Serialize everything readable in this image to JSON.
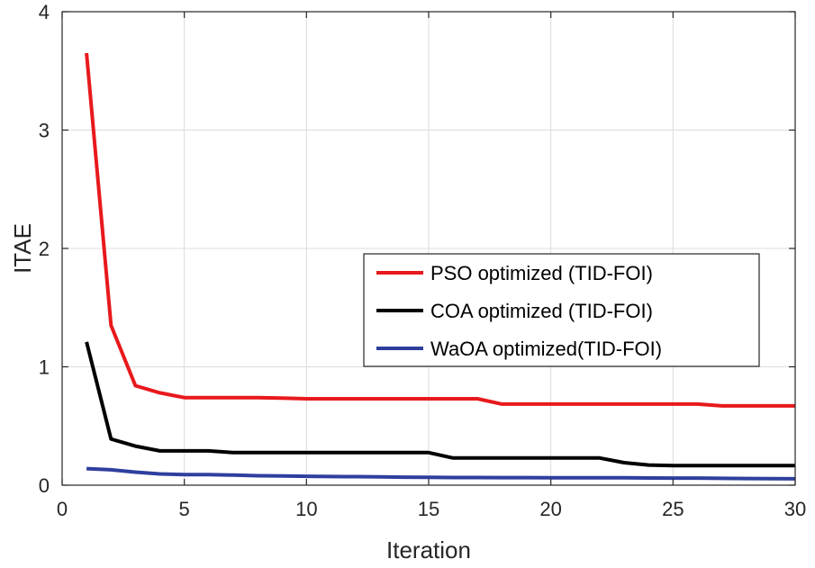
{
  "chart_data": {
    "type": "line",
    "title": "",
    "xlabel": "Iteration",
    "ylabel": "ITAE",
    "xlim": [
      0,
      30
    ],
    "ylim": [
      0,
      4
    ],
    "xticks": [
      0,
      5,
      10,
      15,
      20,
      25,
      30
    ],
    "yticks": [
      0,
      1,
      2,
      3,
      4
    ],
    "xtick_labels": [
      "0",
      "5",
      "10",
      "15",
      "20",
      "25",
      "30"
    ],
    "ytick_labels": [
      "0",
      "1",
      "2",
      "3",
      "4"
    ],
    "grid": true,
    "legend_position": "center-right",
    "series": [
      {
        "name": "PSO optimized (TID-FOI)",
        "color": "#e8191c",
        "x": [
          1,
          2,
          3,
          4,
          5,
          6,
          7,
          8,
          9,
          10,
          11,
          12,
          13,
          14,
          15,
          16,
          17,
          18,
          19,
          20,
          21,
          22,
          23,
          24,
          25,
          26,
          27,
          28,
          29,
          30
        ],
        "values": [
          3.65,
          1.35,
          0.84,
          0.78,
          0.74,
          0.74,
          0.74,
          0.74,
          0.735,
          0.73,
          0.73,
          0.73,
          0.73,
          0.73,
          0.73,
          0.73,
          0.73,
          0.685,
          0.685,
          0.685,
          0.685,
          0.685,
          0.685,
          0.685,
          0.685,
          0.685,
          0.67,
          0.67,
          0.67,
          0.67
        ]
      },
      {
        "name": "COA optimized (TID-FOI)",
        "color": "#000000",
        "x": [
          1,
          2,
          3,
          4,
          5,
          6,
          7,
          8,
          9,
          10,
          11,
          12,
          13,
          14,
          15,
          16,
          17,
          18,
          19,
          20,
          21,
          22,
          23,
          24,
          25,
          26,
          27,
          28,
          29,
          30
        ],
        "values": [
          1.21,
          0.39,
          0.33,
          0.29,
          0.29,
          0.29,
          0.275,
          0.275,
          0.275,
          0.275,
          0.275,
          0.275,
          0.275,
          0.275,
          0.275,
          0.23,
          0.23,
          0.23,
          0.23,
          0.23,
          0.23,
          0.23,
          0.19,
          0.17,
          0.165,
          0.165,
          0.165,
          0.165,
          0.165,
          0.165
        ]
      },
      {
        "name": "WaOA optimized(TID-FOI)",
        "color": "#2e3f9e",
        "x": [
          1,
          2,
          3,
          4,
          5,
          6,
          7,
          8,
          9,
          10,
          11,
          12,
          13,
          14,
          15,
          16,
          17,
          18,
          19,
          20,
          21,
          22,
          23,
          24,
          25,
          26,
          27,
          28,
          29,
          30
        ],
        "values": [
          0.14,
          0.13,
          0.11,
          0.095,
          0.09,
          0.09,
          0.085,
          0.08,
          0.078,
          0.075,
          0.073,
          0.072,
          0.07,
          0.068,
          0.066,
          0.065,
          0.065,
          0.064,
          0.064,
          0.063,
          0.063,
          0.062,
          0.062,
          0.061,
          0.06,
          0.06,
          0.058,
          0.056,
          0.055,
          0.054
        ]
      }
    ]
  }
}
